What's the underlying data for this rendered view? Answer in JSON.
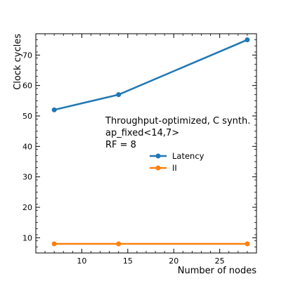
{
  "chart_data": {
    "type": "line",
    "xlabel": "Number of nodes",
    "ylabel": "Clock cycles",
    "xlim": [
      5,
      29
    ],
    "ylim": [
      5,
      77
    ],
    "xticks": [
      10,
      15,
      20,
      25
    ],
    "yticks": [
      10,
      20,
      30,
      40,
      50,
      60,
      70
    ],
    "annotation": [
      "Throughput-optimized, C synth.",
      "ap_fixed<14,7>",
      "RF = 8"
    ],
    "legend_position": "center-right",
    "series": [
      {
        "name": "Latency",
        "color": "#1f77b4",
        "x": [
          7,
          14,
          28
        ],
        "y": [
          52,
          57,
          75
        ]
      },
      {
        "name": "II",
        "color": "#ff7f0e",
        "x": [
          7,
          14,
          28
        ],
        "y": [
          8,
          8,
          8
        ]
      }
    ]
  }
}
